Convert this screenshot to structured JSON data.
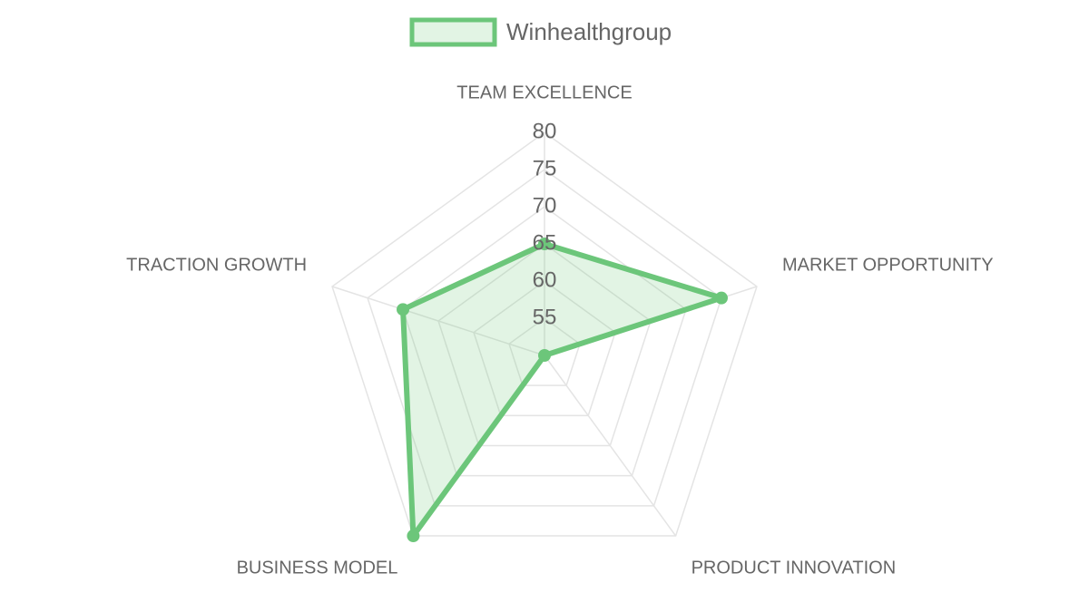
{
  "chart_data": {
    "type": "radar",
    "categories": [
      "TEAM EXCELLENCE",
      "MARKET OPPORTUNITY",
      "PRODUCT INNOVATION",
      "BUSINESS MODEL",
      "TRACTION GROWTH"
    ],
    "series": [
      {
        "name": "Winhealthgroup",
        "color": "#6cc67a",
        "values": [
          65,
          75,
          50,
          80,
          70
        ]
      }
    ],
    "rlim": [
      50,
      80
    ],
    "rticks": [
      55,
      60,
      65,
      70,
      75,
      80
    ],
    "grid": true,
    "legend": "top"
  }
}
